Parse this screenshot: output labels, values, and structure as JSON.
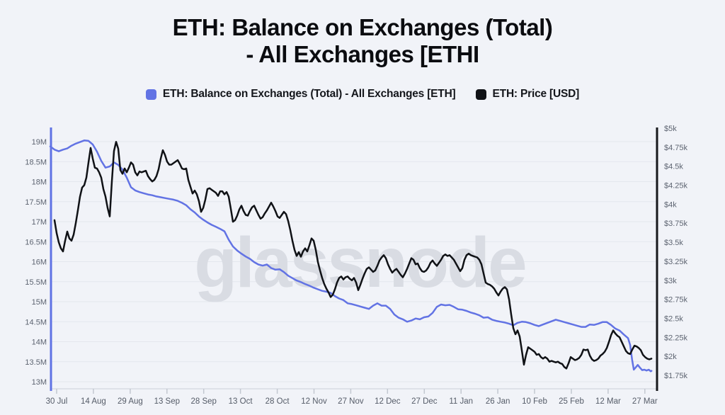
{
  "title": {
    "line1": "ETH: Balance on Exchanges (Total)",
    "line2": "- All Exchanges [ETHI"
  },
  "watermark": "glassnode",
  "legend": {
    "items": [
      {
        "label": "ETH: Balance on Exchanges (Total) - All Exchanges [ETH]",
        "color": "#6273e4"
      },
      {
        "label": "ETH: Price [USD]",
        "color": "#101216"
      }
    ]
  },
  "chart_data": {
    "type": "line",
    "title": "ETH: Balance on Exchanges (Total) - All Exchanges [ETHI",
    "grid": "horizontal-only",
    "legend_position": "top-center",
    "x_axis": {
      "unit": "date",
      "tick_interval_days": 15,
      "tick_labels": [
        "30 Jul",
        "14 Aug",
        "29 Aug",
        "13 Sep",
        "28 Sep",
        "13 Oct",
        "28 Oct",
        "12 Nov",
        "27 Nov",
        "12 Dec",
        "27 Dec",
        "11 Jan",
        "26 Jan",
        "10 Feb",
        "25 Feb",
        "12 Mar",
        "27 Mar"
      ],
      "tick_days": [
        0,
        15,
        30,
        45,
        60,
        75,
        90,
        105,
        120,
        135,
        150,
        165,
        180,
        195,
        210,
        225,
        240
      ]
    },
    "y_left": {
      "unit": "ETH (millions)",
      "min": 13,
      "max": 19,
      "tick_labels": [
        "19M",
        "18.5M",
        "18M",
        "17.5M",
        "17M",
        "16.5M",
        "16M",
        "15.5M",
        "15M",
        "14.5M",
        "14M",
        "13.5M",
        "13M"
      ],
      "tick_values": [
        19,
        18.5,
        18,
        17.5,
        17,
        16.5,
        16,
        15.5,
        15,
        14.5,
        14,
        13.5,
        13
      ],
      "axis_color": "#5f72e4"
    },
    "y_right": {
      "unit": "USD (thousands)",
      "min": 1.75,
      "max": 5,
      "tick_labels": [
        "$5k",
        "$4.75k",
        "$4.5k",
        "$4.25k",
        "$4k",
        "$3.75k",
        "$3.5k",
        "$3.25k",
        "$3k",
        "$2.75k",
        "$2.5k",
        "$2.25k",
        "$2k",
        "$1.75k"
      ],
      "tick_values": [
        5,
        4.75,
        4.5,
        4.25,
        4,
        3.75,
        3.5,
        3.25,
        3,
        2.75,
        2.5,
        2.25,
        2,
        1.75
      ],
      "axis_color": "#17181c"
    },
    "series": [
      {
        "name": "ETH: Balance on Exchanges (Total) - All Exchanges [ETH]",
        "axis": "left",
        "color": "#6273e4",
        "unit": "M ETH",
        "start_day": -2.6,
        "step_days": 1.7333,
        "values": [
          18.88,
          18.8,
          18.76,
          18.8,
          18.83,
          18.9,
          18.95,
          18.99,
          19.03,
          19.02,
          18.93,
          18.75,
          18.52,
          18.35,
          18.38,
          18.48,
          18.42,
          18.3,
          18.1,
          17.86,
          17.78,
          17.74,
          17.71,
          17.68,
          17.66,
          17.63,
          17.61,
          17.59,
          17.57,
          17.55,
          17.52,
          17.47,
          17.41,
          17.31,
          17.23,
          17.13,
          17.05,
          16.98,
          16.92,
          16.87,
          16.82,
          16.76,
          16.55,
          16.38,
          16.28,
          16.2,
          16.13,
          16.07,
          15.99,
          15.93,
          15.9,
          15.93,
          15.84,
          15.8,
          15.81,
          15.74,
          15.65,
          15.59,
          15.53,
          15.49,
          15.44,
          15.4,
          15.35,
          15.31,
          15.27,
          15.25,
          15.22,
          15.14,
          15.08,
          15.04,
          14.96,
          14.94,
          14.91,
          14.88,
          14.85,
          14.82,
          14.9,
          14.96,
          14.9,
          14.9,
          14.82,
          14.68,
          14.6,
          14.56,
          14.5,
          14.53,
          14.58,
          14.56,
          14.61,
          14.63,
          14.72,
          14.87,
          14.93,
          14.91,
          14.92,
          14.87,
          14.81,
          14.8,
          14.77,
          14.73,
          14.7,
          14.66,
          14.6,
          14.61,
          14.55,
          14.52,
          14.5,
          14.48,
          14.45,
          14.41,
          14.47,
          14.5,
          14.49,
          14.46,
          14.42,
          14.39,
          14.43,
          14.47,
          14.51,
          14.55,
          14.52,
          14.49,
          14.46,
          14.43,
          14.4,
          14.37,
          14.37,
          14.43,
          14.42,
          14.45,
          14.49,
          14.49,
          14.42,
          14.33,
          14.28,
          14.18,
          14.09
        ],
        "tail_points": [
          [
            234.0,
            13.92
          ],
          [
            234.8,
            13.55
          ],
          [
            235.5,
            13.3
          ],
          [
            236.3,
            13.36
          ],
          [
            237.1,
            13.42
          ],
          [
            238.0,
            13.35
          ],
          [
            238.9,
            13.29
          ],
          [
            239.8,
            13.3
          ],
          [
            240.7,
            13.28
          ],
          [
            241.6,
            13.3
          ],
          [
            242.4,
            13.26
          ],
          [
            242.7,
            13.27
          ]
        ]
      },
      {
        "name": "ETH: Price [USD]",
        "axis": "right",
        "color": "#101216",
        "unit": "USD k",
        "start_day": -0.87,
        "step_days": 0.8667,
        "values": [
          3.79,
          3.62,
          3.5,
          3.42,
          3.38,
          3.52,
          3.64,
          3.55,
          3.52,
          3.6,
          3.75,
          3.92,
          4.1,
          4.22,
          4.25,
          4.35,
          4.55,
          4.74,
          4.6,
          4.48,
          4.47,
          4.42,
          4.35,
          4.2,
          4.1,
          3.95,
          3.84,
          4.3,
          4.7,
          4.82,
          4.73,
          4.45,
          4.4,
          4.47,
          4.42,
          4.48,
          4.55,
          4.52,
          4.42,
          4.38,
          4.43,
          4.42,
          4.43,
          4.44,
          4.37,
          4.33,
          4.3,
          4.32,
          4.37,
          4.46,
          4.6,
          4.71,
          4.65,
          4.56,
          4.52,
          4.52,
          4.54,
          4.56,
          4.58,
          4.53,
          4.47,
          4.46,
          4.47,
          4.32,
          4.23,
          4.14,
          4.18,
          4.13,
          4.04,
          3.9,
          3.95,
          4.06,
          4.2,
          4.21,
          4.19,
          4.17,
          4.15,
          4.11,
          4.17,
          4.17,
          4.13,
          4.16,
          4.1,
          3.94,
          3.77,
          3.79,
          3.85,
          3.93,
          3.98,
          3.91,
          3.86,
          3.85,
          3.91,
          3.96,
          3.98,
          3.92,
          3.86,
          3.81,
          3.83,
          3.88,
          3.92,
          3.97,
          4.02,
          3.97,
          3.91,
          3.84,
          3.82,
          3.86,
          3.9,
          3.87,
          3.78,
          3.66,
          3.52,
          3.4,
          3.32,
          3.37,
          3.31,
          3.38,
          3.42,
          3.38,
          3.46,
          3.55,
          3.52,
          3.4,
          3.24,
          3.13,
          3.03,
          2.95,
          2.89,
          2.84,
          2.78,
          2.81,
          2.88,
          2.97,
          3.03,
          3.05,
          3.01,
          3.04,
          3.05,
          3.02,
          3.0,
          3.03,
          2.97,
          2.87,
          2.94,
          3.02,
          3.09,
          3.15,
          3.17,
          3.14,
          3.11,
          3.13,
          3.19,
          3.26,
          3.3,
          3.33,
          3.29,
          3.21,
          3.15,
          3.1,
          3.13,
          3.15,
          3.11,
          3.07,
          3.04,
          3.09,
          3.15,
          3.22,
          3.29,
          3.27,
          3.21,
          3.22,
          3.16,
          3.12,
          3.11,
          3.13,
          3.17,
          3.23,
          3.26,
          3.22,
          3.19,
          3.23,
          3.27,
          3.32,
          3.34,
          3.32,
          3.33,
          3.3,
          3.27,
          3.22,
          3.17,
          3.12,
          3.16,
          3.27,
          3.33,
          3.35,
          3.33,
          3.32,
          3.31,
          3.3,
          3.27,
          3.21,
          3.09,
          2.97,
          2.95,
          2.94,
          2.92,
          2.89,
          2.84,
          2.8,
          2.85,
          2.89,
          2.91,
          2.88,
          2.75,
          2.55,
          2.37,
          2.29,
          2.34,
          2.26,
          2.08,
          1.89,
          2.02,
          2.12,
          2.1,
          2.08,
          2.06,
          2.02,
          2.03,
          1.99,
          1.97,
          1.99,
          1.97,
          1.93,
          1.94,
          1.93,
          1.92,
          1.93,
          1.91,
          1.9,
          1.86,
          1.84,
          1.91,
          1.99,
          1.97,
          1.95,
          1.96,
          1.98,
          2.02,
          2.09,
          2.08,
          2.09,
          2.01,
          1.96,
          1.94,
          1.95,
          1.97,
          2.01,
          2.03,
          2.06,
          2.11,
          2.19,
          2.28,
          2.34,
          2.3,
          2.27,
          2.25,
          2.19,
          2.13,
          2.07,
          2.04,
          2.03,
          2.09,
          2.14,
          2.13,
          2.11,
          2.08,
          2.02,
          1.99,
          1.97,
          1.96,
          1.97
        ]
      }
    ]
  }
}
